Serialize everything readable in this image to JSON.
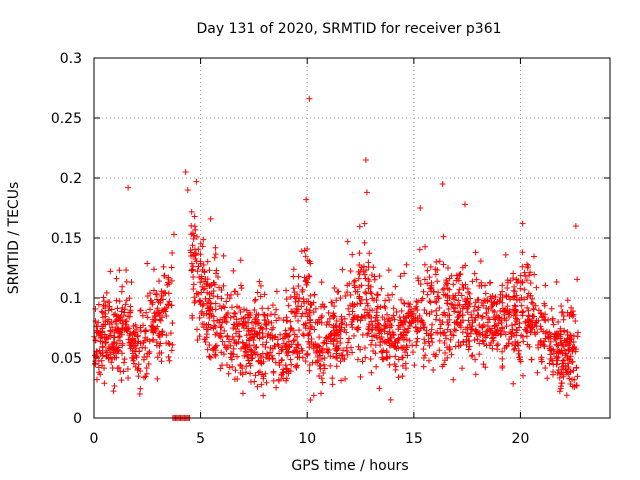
{
  "chart_data": {
    "type": "scatter",
    "title": "Day 131 of 2020, SRMTID for receiver p361",
    "xlabel": "GPS time / hours",
    "ylabel": "SRMTID / TECUs",
    "xlim": [
      0,
      24.2
    ],
    "ylim": [
      0,
      0.3
    ],
    "xticks": [
      0,
      5,
      10,
      15,
      20
    ],
    "xtick_labels": [
      "0",
      "5",
      "10",
      "15",
      "20"
    ],
    "yticks": [
      0,
      0.05,
      0.1,
      0.15,
      0.2,
      0.25,
      0.3
    ],
    "ytick_labels": [
      "0",
      "0.05",
      "0.1",
      "0.15",
      "0.2",
      "0.25",
      "0.3"
    ],
    "grid": true,
    "marker": "+",
    "color": "#ff0000",
    "series": [
      {
        "name": "SRMTID",
        "zero_run": [
          3.7,
          4.5
        ],
        "outliers": [
          [
            10.1,
            0.266
          ],
          [
            12.75,
            0.215
          ],
          [
            4.3,
            0.205
          ],
          [
            4.8,
            0.197
          ],
          [
            16.35,
            0.195
          ],
          [
            1.6,
            0.192
          ],
          [
            4.4,
            0.19
          ],
          [
            12.8,
            0.188
          ],
          [
            9.95,
            0.182
          ],
          [
            17.4,
            0.178
          ],
          [
            15.3,
            0.175
          ],
          [
            3.75,
            0.153
          ],
          [
            11.9,
            0.147
          ],
          [
            22.6,
            0.16
          ],
          [
            20.1,
            0.162
          ],
          [
            10.15,
            0.015
          ],
          [
            2.15,
            0.02
          ]
        ],
        "envelope": [
          {
            "t": 0.0,
            "mean": 0.055,
            "spread": 0.018
          },
          {
            "t": 0.5,
            "mean": 0.068,
            "spread": 0.022
          },
          {
            "t": 1.0,
            "mean": 0.062,
            "spread": 0.022
          },
          {
            "t": 1.5,
            "mean": 0.085,
            "spread": 0.03
          },
          {
            "t": 2.0,
            "mean": 0.05,
            "spread": 0.02
          },
          {
            "t": 2.6,
            "mean": 0.07,
            "spread": 0.025
          },
          {
            "t": 3.2,
            "mean": 0.085,
            "spread": 0.028
          },
          {
            "t": 3.6,
            "mean": 0.098,
            "spread": 0.03
          },
          {
            "t": 4.6,
            "mean": 0.13,
            "spread": 0.035
          },
          {
            "t": 5.2,
            "mean": 0.1,
            "spread": 0.03
          },
          {
            "t": 6.0,
            "mean": 0.075,
            "spread": 0.025
          },
          {
            "t": 7.0,
            "mean": 0.065,
            "spread": 0.025
          },
          {
            "t": 8.0,
            "mean": 0.065,
            "spread": 0.028
          },
          {
            "t": 9.0,
            "mean": 0.055,
            "spread": 0.025
          },
          {
            "t": 9.8,
            "mean": 0.095,
            "spread": 0.035
          },
          {
            "t": 10.5,
            "mean": 0.06,
            "spread": 0.025
          },
          {
            "t": 11.5,
            "mean": 0.07,
            "spread": 0.025
          },
          {
            "t": 12.7,
            "mean": 0.1,
            "spread": 0.035
          },
          {
            "t": 13.5,
            "mean": 0.07,
            "spread": 0.025
          },
          {
            "t": 14.5,
            "mean": 0.07,
            "spread": 0.025
          },
          {
            "t": 15.5,
            "mean": 0.085,
            "spread": 0.028
          },
          {
            "t": 16.5,
            "mean": 0.09,
            "spread": 0.03
          },
          {
            "t": 17.5,
            "mean": 0.085,
            "spread": 0.025
          },
          {
            "t": 18.5,
            "mean": 0.08,
            "spread": 0.025
          },
          {
            "t": 19.5,
            "mean": 0.085,
            "spread": 0.03
          },
          {
            "t": 20.5,
            "mean": 0.085,
            "spread": 0.028
          },
          {
            "t": 21.2,
            "mean": 0.065,
            "spread": 0.025
          },
          {
            "t": 22.0,
            "mean": 0.055,
            "spread": 0.025
          },
          {
            "t": 22.7,
            "mean": 0.06,
            "spread": 0.025
          }
        ]
      }
    ]
  }
}
